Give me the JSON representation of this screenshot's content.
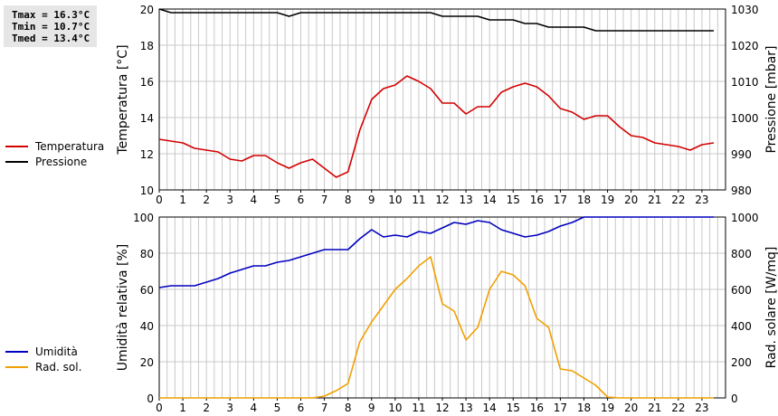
{
  "stats": {
    "tmax": "Tmax = 16.3°C",
    "tmin": "Tmin = 10.7°C",
    "tmed": "Tmed = 13.4°C"
  },
  "colors": {
    "temperature": "#d40000",
    "pressure": "#000000",
    "humidity": "#0000c0",
    "radiation": "#f0a000",
    "grid": "#c8c8c8"
  },
  "chart_data": [
    {
      "type": "line",
      "ylabel": "Temperatura [°C]",
      "y2label": "Pressione [mbar]",
      "x_ticks": [
        "0",
        "1",
        "2",
        "3",
        "4",
        "5",
        "6",
        "7",
        "8",
        "9",
        "10",
        "11",
        "12",
        "13",
        "14",
        "15",
        "16",
        "17",
        "18",
        "19",
        "20",
        "21",
        "22",
        "23"
      ],
      "xlim": [
        0,
        24
      ],
      "ylim": [
        10,
        20
      ],
      "y_ticks": [
        "10",
        "12",
        "14",
        "16",
        "18",
        "20"
      ],
      "y2lim": [
        980,
        1030
      ],
      "y2_ticks": [
        "980",
        "990",
        "1000",
        "1010",
        "1020",
        "1030"
      ],
      "grid": true,
      "series": [
        {
          "name": "Temperatura",
          "axis": "left",
          "color": "#d40000",
          "x": [
            0,
            0.5,
            1,
            1.5,
            2,
            2.5,
            3,
            3.5,
            4,
            4.5,
            5,
            5.5,
            6,
            6.5,
            7,
            7.5,
            8,
            8.5,
            9,
            9.5,
            10,
            10.5,
            11,
            11.5,
            12,
            12.5,
            13,
            13.5,
            14,
            14.5,
            15,
            15.5,
            16,
            16.5,
            17,
            17.5,
            18,
            18.5,
            19,
            19.5,
            20,
            20.5,
            21,
            21.5,
            22,
            22.5,
            23,
            23.5
          ],
          "values": [
            12.8,
            12.7,
            12.6,
            12.3,
            12.2,
            12.1,
            11.7,
            11.6,
            11.9,
            11.9,
            11.5,
            11.2,
            11.5,
            11.7,
            11.2,
            10.7,
            11.0,
            13.3,
            15.0,
            15.6,
            15.8,
            16.3,
            16.0,
            15.6,
            14.8,
            14.8,
            14.2,
            14.6,
            14.6,
            15.4,
            15.7,
            15.9,
            15.7,
            15.2,
            14.5,
            14.3,
            13.9,
            14.1,
            14.1,
            13.5,
            13.0,
            12.9,
            12.6,
            12.5,
            12.4,
            12.2,
            12.5,
            12.6
          ]
        },
        {
          "name": "Pressione",
          "axis": "right",
          "color": "#000000",
          "x": [
            0,
            0.5,
            1,
            1.5,
            2,
            2.5,
            3,
            3.5,
            4,
            4.5,
            5,
            5.5,
            6,
            6.5,
            7,
            7.5,
            8,
            8.5,
            9,
            9.5,
            10,
            10.5,
            11,
            11.5,
            12,
            12.5,
            13,
            13.5,
            14,
            14.5,
            15,
            15.5,
            16,
            16.5,
            17,
            17.5,
            18,
            18.5,
            19,
            19.5,
            20,
            20.5,
            21,
            21.5,
            22,
            22.5,
            23,
            23.5
          ],
          "values": [
            1030,
            1029,
            1029,
            1029,
            1029,
            1029,
            1029,
            1029,
            1029,
            1029,
            1029,
            1028,
            1029,
            1029,
            1029,
            1029,
            1029,
            1029,
            1029,
            1029,
            1029,
            1029,
            1029,
            1029,
            1028,
            1028,
            1028,
            1028,
            1027,
            1027,
            1027,
            1026,
            1026,
            1025,
            1025,
            1025,
            1025,
            1024,
            1024,
            1024,
            1024,
            1024,
            1024,
            1024,
            1024,
            1024,
            1024,
            1024
          ]
        }
      ]
    },
    {
      "type": "line",
      "ylabel": "Umidità relativa [%]",
      "y2label": "Rad. solare [W/mq]",
      "x_ticks": [
        "0",
        "1",
        "2",
        "3",
        "4",
        "5",
        "6",
        "7",
        "8",
        "9",
        "10",
        "11",
        "12",
        "13",
        "14",
        "15",
        "16",
        "17",
        "18",
        "19",
        "20",
        "21",
        "22",
        "23"
      ],
      "xlim": [
        0,
        24
      ],
      "ylim": [
        0,
        100
      ],
      "y_ticks": [
        "0",
        "20",
        "40",
        "60",
        "80",
        "100"
      ],
      "y2lim": [
        0,
        1000
      ],
      "y2_ticks": [
        "0",
        "200",
        "400",
        "600",
        "800",
        "1000"
      ],
      "grid": true,
      "series": [
        {
          "name": "Umidità",
          "axis": "left",
          "color": "#0000c0",
          "x": [
            0,
            0.5,
            1,
            1.5,
            2,
            2.5,
            3,
            3.5,
            4,
            4.5,
            5,
            5.5,
            6,
            6.5,
            7,
            7.5,
            8,
            8.5,
            9,
            9.5,
            10,
            10.5,
            11,
            11.5,
            12,
            12.5,
            13,
            13.5,
            14,
            14.5,
            15,
            15.5,
            16,
            16.5,
            17,
            17.5,
            18,
            18.5,
            19,
            19.5,
            20,
            20.5,
            21,
            21.5,
            22,
            22.5,
            23,
            23.5
          ],
          "values": [
            61,
            62,
            62,
            62,
            64,
            66,
            69,
            71,
            73,
            73,
            75,
            76,
            78,
            80,
            82,
            82,
            82,
            88,
            93,
            89,
            90,
            89,
            92,
            91,
            94,
            97,
            96,
            98,
            97,
            93,
            91,
            89,
            90,
            92,
            95,
            97,
            100,
            100,
            100,
            100,
            100,
            100,
            100,
            100,
            100,
            100,
            100,
            100
          ]
        },
        {
          "name": "Rad. sol.",
          "axis": "right",
          "color": "#f0a000",
          "x": [
            0,
            0.5,
            1,
            1.5,
            2,
            2.5,
            3,
            3.5,
            4,
            4.5,
            5,
            5.5,
            6,
            6.5,
            7,
            7.5,
            8,
            8.5,
            9,
            9.5,
            10,
            10.5,
            11,
            11.5,
            12,
            12.5,
            13,
            13.5,
            14,
            14.5,
            15,
            15.5,
            16,
            16.5,
            17,
            17.5,
            18,
            18.5,
            19,
            19.5,
            20,
            20.5,
            21,
            21.5,
            22,
            22.5,
            23,
            23.5
          ],
          "values": [
            0,
            0,
            0,
            0,
            0,
            0,
            0,
            0,
            0,
            0,
            0,
            0,
            0,
            0,
            10,
            40,
            80,
            310,
            420,
            510,
            600,
            660,
            730,
            780,
            520,
            480,
            320,
            390,
            600,
            700,
            680,
            620,
            440,
            390,
            160,
            150,
            110,
            70,
            5,
            0,
            0,
            0,
            0,
            0,
            0,
            0,
            0,
            0
          ]
        }
      ]
    }
  ]
}
